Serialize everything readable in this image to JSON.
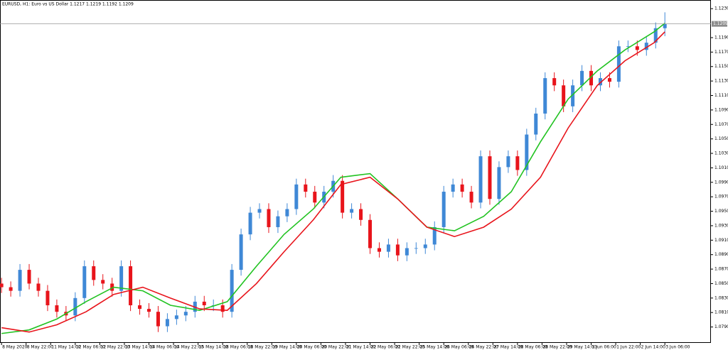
{
  "chart_data": {
    "type": "candlestick",
    "title": "EURUSD, H1:  Euro vs US Dollar  1.1217 1.1219 1.1192 1.1209",
    "up_color": "#3f88d6",
    "down_color": "#e8141b",
    "x": [
      0,
      6,
      12,
      18,
      24,
      30,
      36,
      42,
      48,
      54,
      60,
      66,
      72,
      78,
      84,
      90,
      96,
      102,
      108,
      114,
      120,
      126,
      132,
      138,
      144,
      150,
      156,
      162,
      168,
      174,
      180,
      186,
      192,
      198,
      204,
      210,
      216,
      222,
      228,
      234,
      240,
      246,
      252,
      258,
      264,
      270,
      276,
      282,
      288,
      294,
      300,
      306,
      312,
      318,
      324,
      330,
      336,
      342,
      348,
      354,
      360,
      366,
      372,
      378,
      384,
      390,
      396,
      402,
      408,
      414,
      420,
      426,
      432
    ],
    "open": [
      1.085,
      1.0845,
      1.084,
      1.0869,
      1.085,
      1.084,
      1.082,
      1.0811,
      1.0806,
      1.083,
      1.0874,
      1.0855,
      1.085,
      1.084,
      1.0874,
      1.082,
      1.0815,
      1.0811,
      1.0791,
      1.0801,
      1.0806,
      1.0811,
      1.0825,
      1.082,
      1.082,
      1.0811,
      1.0869,
      1.0918,
      1.0948,
      1.0953,
      1.0928,
      1.0943,
      1.0953,
      1.0987,
      1.0977,
      1.0962,
      1.0977,
      1.0992,
      1.0948,
      1.0953,
      1.0938,
      1.0899,
      1.0894,
      1.0904,
      1.0889,
      1.0899,
      1.0899,
      1.0904,
      1.0928,
      1.0977,
      1.0987,
      1.0977,
      1.0962,
      1.1026,
      1.0967,
      1.1011,
      1.1026,
      1.1007,
      1.1056,
      1.1085,
      1.1134,
      1.1124,
      1.1095,
      1.1124,
      1.1144,
      1.1124,
      1.1134,
      1.1129,
      1.1178,
      1.1178,
      1.1173,
      1.1183,
      1.1203
    ],
    "high": [
      1.0858,
      1.0853,
      1.0877,
      1.0877,
      1.0858,
      1.0848,
      1.0828,
      1.0819,
      1.0838,
      1.0882,
      1.0882,
      1.0863,
      1.0858,
      1.0882,
      1.0882,
      1.0828,
      1.0823,
      1.0819,
      1.0809,
      1.0814,
      1.0819,
      1.0833,
      1.0833,
      1.0828,
      1.0828,
      1.0877,
      1.0926,
      1.0956,
      1.0961,
      1.0961,
      1.0951,
      1.0961,
      1.0995,
      1.0995,
      1.0985,
      1.0985,
      1.1,
      1.1,
      1.0961,
      1.0961,
      1.0946,
      1.0907,
      1.0912,
      1.0912,
      1.0907,
      1.0907,
      1.0912,
      1.0936,
      1.0985,
      1.0995,
      1.0995,
      1.0985,
      1.1034,
      1.1034,
      1.1019,
      1.1034,
      1.1034,
      1.1064,
      1.1093,
      1.1142,
      1.1142,
      1.1132,
      1.1132,
      1.1152,
      1.1152,
      1.1142,
      1.1142,
      1.1186,
      1.1186,
      1.1186,
      1.1191,
      1.1211,
      1.1225
    ],
    "low": [
      1.0837,
      1.0832,
      1.0832,
      1.0842,
      1.0832,
      1.0812,
      1.0803,
      1.0798,
      1.0798,
      1.0822,
      1.0847,
      1.0842,
      1.0832,
      1.0832,
      1.0812,
      1.0807,
      1.0803,
      1.0783,
      1.0783,
      1.0793,
      1.0798,
      1.0803,
      1.0812,
      1.0812,
      1.0803,
      1.0803,
      1.0861,
      1.091,
      1.094,
      1.092,
      1.092,
      1.0935,
      1.0945,
      1.0969,
      1.0954,
      1.0954,
      1.0969,
      1.094,
      1.094,
      1.093,
      1.0891,
      1.0886,
      1.0886,
      1.0881,
      1.0881,
      1.0891,
      1.0891,
      1.0896,
      1.092,
      1.0969,
      1.0969,
      1.0954,
      1.0954,
      1.0959,
      1.0959,
      1.1003,
      1.0999,
      1.0999,
      1.1048,
      1.1077,
      1.1116,
      1.1087,
      1.1087,
      1.1116,
      1.1116,
      1.1116,
      1.1121,
      1.1121,
      1.117,
      1.1165,
      1.1165,
      1.1175,
      1.1192
    ],
    "close": [
      1.0845,
      1.084,
      1.0869,
      1.085,
      1.084,
      1.082,
      1.0811,
      1.0806,
      1.083,
      1.0874,
      1.0855,
      1.085,
      1.084,
      1.0874,
      1.082,
      1.0815,
      1.0811,
      1.0791,
      1.0801,
      1.0806,
      1.0811,
      1.0825,
      1.082,
      1.082,
      1.0811,
      1.0869,
      1.0918,
      1.0948,
      1.0953,
      1.0928,
      1.0943,
      1.0953,
      1.0987,
      1.0977,
      1.0962,
      1.0977,
      1.0992,
      1.0948,
      1.0953,
      1.0938,
      1.0899,
      1.0894,
      1.0904,
      1.0889,
      1.0899,
      1.0899,
      1.0904,
      1.0928,
      1.0977,
      1.0987,
      1.0977,
      1.0962,
      1.1026,
      1.0967,
      1.1011,
      1.1026,
      1.1007,
      1.1056,
      1.1085,
      1.1134,
      1.1124,
      1.1095,
      1.1124,
      1.1144,
      1.1124,
      1.1134,
      1.1129,
      1.1178,
      1.1178,
      1.1173,
      1.1183,
      1.1203,
      1.1209
    ],
    "lines": {
      "x": [
        0,
        18,
        36,
        55,
        73,
        92,
        110,
        129,
        147,
        166,
        184,
        203,
        221,
        240,
        258,
        277,
        295,
        314,
        332,
        351,
        369,
        388,
        406,
        425,
        432
      ],
      "series": [
        {
          "color": "#22c322",
          "values": [
            1.0781,
            1.0786,
            1.0801,
            1.0825,
            1.0845,
            1.084,
            1.082,
            1.0813,
            1.0825,
            1.0874,
            1.0918,
            1.0953,
            1.0997,
            1.1002,
            1.0967,
            1.0928,
            1.0923,
            1.0943,
            1.0977,
            1.1046,
            1.1105,
            1.1144,
            1.1173,
            1.1198,
            1.121
          ]
        },
        {
          "color": "#e8141b",
          "values": [
            1.0789,
            1.0783,
            1.0793,
            1.0811,
            1.0835,
            1.0845,
            1.083,
            1.0815,
            1.0813,
            1.085,
            1.0894,
            1.0938,
            1.0987,
            1.0997,
            1.0967,
            1.0928,
            1.0915,
            1.0928,
            1.0953,
            1.0997,
            1.1065,
            1.1124,
            1.1158,
            1.1183,
            1.1198
          ]
        }
      ]
    },
    "current_price": 1.1209,
    "xlim": [
      -1,
      462
    ],
    "ylim": [
      1.0768,
      1.1242
    ],
    "yticks": [
      {
        "value": 1.123,
        "label": "1.1230"
      },
      {
        "value": 1.119,
        "label": "1.1190"
      },
      {
        "value": 1.117,
        "label": "1.1170"
      },
      {
        "value": 1.115,
        "label": "1.1150"
      },
      {
        "value": 1.113,
        "label": "1.1130"
      },
      {
        "value": 1.111,
        "label": "1.1110"
      },
      {
        "value": 1.109,
        "label": "1.1090"
      },
      {
        "value": 1.107,
        "label": "1.1070"
      },
      {
        "value": 1.105,
        "label": "1.1050"
      },
      {
        "value": 1.103,
        "label": "1.1030"
      },
      {
        "value": 1.101,
        "label": "1.1010"
      },
      {
        "value": 1.099,
        "label": "1.0990"
      },
      {
        "value": 1.097,
        "label": "1.0970"
      },
      {
        "value": 1.095,
        "label": "1.0950"
      },
      {
        "value": 1.093,
        "label": "1.0930"
      },
      {
        "value": 1.091,
        "label": "1.0910"
      },
      {
        "value": 1.089,
        "label": "1.0890"
      },
      {
        "value": 1.087,
        "label": "1.0870"
      },
      {
        "value": 1.085,
        "label": "1.0850"
      },
      {
        "value": 1.083,
        "label": "1.0830"
      },
      {
        "value": 1.081,
        "label": "1.0810"
      },
      {
        "value": 1.079,
        "label": "1.0790"
      }
    ],
    "xticks": [
      {
        "value": 0,
        "label": "8 May 2020"
      },
      {
        "value": 16,
        "label": "8 May 22:00"
      },
      {
        "value": 32,
        "label": "11 May 14:00"
      },
      {
        "value": 48,
        "label": "12 May 06:00"
      },
      {
        "value": 64,
        "label": "12 May 22:00"
      },
      {
        "value": 80,
        "label": "13 May 14:00"
      },
      {
        "value": 96,
        "label": "14 May 06:00"
      },
      {
        "value": 112,
        "label": "14 May 22:00"
      },
      {
        "value": 128,
        "label": "15 May 14:00"
      },
      {
        "value": 144,
        "label": "18 May 06:00"
      },
      {
        "value": 160,
        "label": "18 May 22:00"
      },
      {
        "value": 176,
        "label": "19 May 14:00"
      },
      {
        "value": 192,
        "label": "20 May 06:00"
      },
      {
        "value": 208,
        "label": "20 May 22:00"
      },
      {
        "value": 224,
        "label": "21 May 14:00"
      },
      {
        "value": 240,
        "label": "22 May 06:00"
      },
      {
        "value": 256,
        "label": "22 May 22:00"
      },
      {
        "value": 272,
        "label": "25 May 14:00"
      },
      {
        "value": 288,
        "label": "26 May 06:00"
      },
      {
        "value": 304,
        "label": "26 May 22:00"
      },
      {
        "value": 320,
        "label": "27 May 14:00"
      },
      {
        "value": 336,
        "label": "28 May 06:00"
      },
      {
        "value": 352,
        "label": "28 May 22:00"
      },
      {
        "value": 368,
        "label": "29 May 14:00"
      },
      {
        "value": 384,
        "label": "1 Jun 06:00"
      },
      {
        "value": 400,
        "label": "1 Jun 22:00"
      },
      {
        "value": 416,
        "label": "2 Jun 14:00"
      },
      {
        "value": 432,
        "label": "3 Jun 06:00"
      }
    ]
  }
}
